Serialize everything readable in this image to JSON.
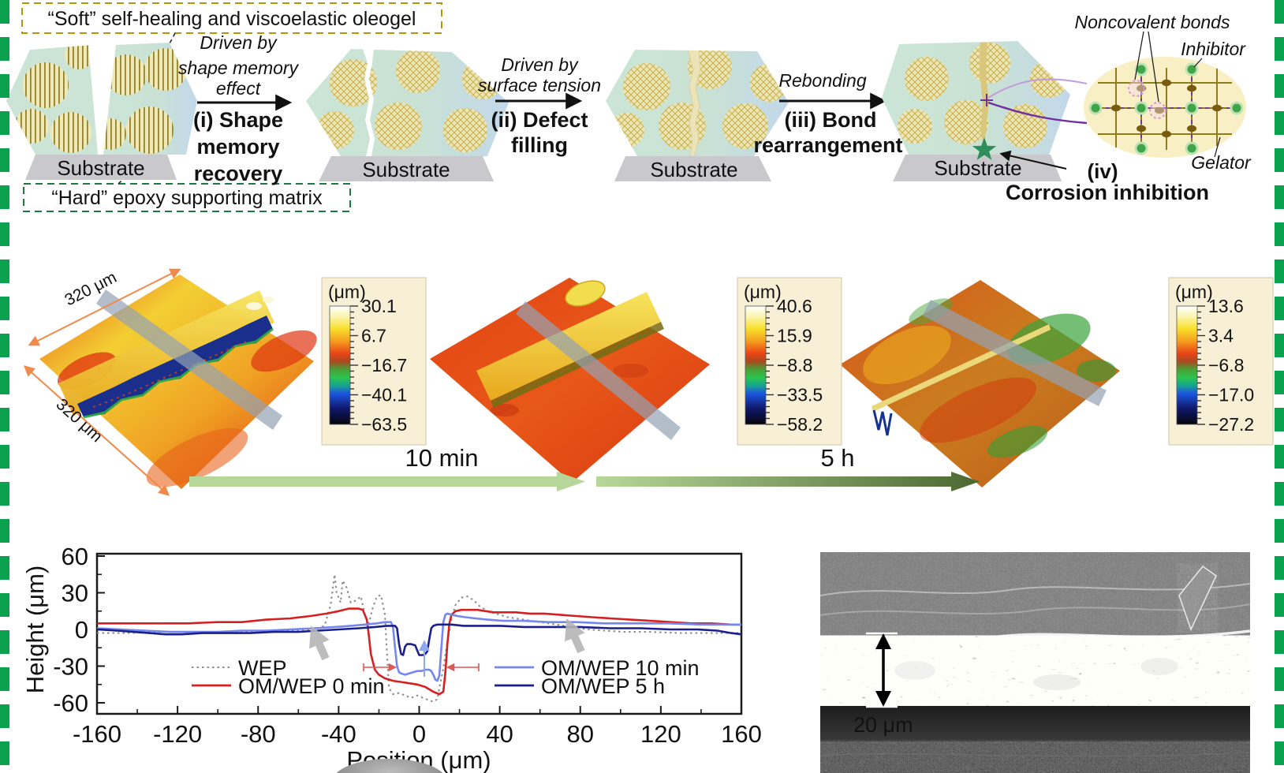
{
  "figure": {
    "border_color": "#0aa14f"
  },
  "schematic": {
    "soft_label": "“Soft” self-healing and viscoelastic oleogel",
    "hard_label": "“Hard” epoxy supporting matrix",
    "substrate_label": "Substrate",
    "soft_color": "#b6940d",
    "hard_color": "#1d7a3f",
    "steps": [
      {
        "driver_color": "#8a3a10",
        "name_color": "#7d3208",
        "driver_lines": [
          "Driven by",
          "shape memory",
          "effect"
        ],
        "name_lines": [
          "(i) Shape",
          "memory",
          "recovery"
        ]
      },
      {
        "driver_color": "#2c5fae",
        "name_color": "#1d3f9e",
        "driver_lines": [
          "Driven by",
          "surface tension"
        ],
        "name_lines": [
          "(ii) Defect",
          "filling"
        ]
      },
      {
        "driver_color": "#8b44cc",
        "name_color": "#6a2d9e",
        "driver_lines": [
          "Rebonding"
        ],
        "name_lines": [
          "(iii) Bond",
          "rearrangement"
        ]
      },
      {
        "name_color": "#1e7a3c",
        "iv_label": "(iv)",
        "name": "Corrosion inhibition"
      }
    ],
    "callouts": {
      "noncovalent": "Noncovalent bonds",
      "inhibitor": "Inhibitor",
      "gelator": "Gelator"
    }
  },
  "topography": {
    "size_label": "320 μm",
    "colorbars": [
      {
        "unit": "(μm)",
        "ticks": [
          "30.1",
          "6.7",
          "−16.7",
          "−40.1",
          "−63.5"
        ]
      },
      {
        "unit": "(μm)",
        "ticks": [
          "40.6",
          "15.9",
          "−8.8",
          "−33.5",
          "−58.2"
        ]
      },
      {
        "unit": "(μm)",
        "ticks": [
          "13.6",
          "3.4",
          "−6.8",
          "−17.0",
          "−27.2"
        ]
      }
    ],
    "timeline": [
      {
        "label": "10 min"
      },
      {
        "label": "5 h"
      }
    ]
  },
  "chart_data": {
    "type": "line",
    "title": "",
    "xlabel": "Position (μm)",
    "ylabel": "Height (μm)",
    "xlim": [
      -160,
      160
    ],
    "ylim": [
      -60,
      60
    ],
    "xticks": [
      -160,
      -120,
      -80,
      -40,
      0,
      40,
      80,
      120,
      160
    ],
    "yticks": [
      60,
      30,
      0,
      -30,
      -60
    ],
    "x_minor_step": 20,
    "y_minor_step": 15,
    "grid": false,
    "legend_position": "inside",
    "series": [
      {
        "name": "WEP",
        "color": "#8f8f8f",
        "dash": "dotted",
        "width": 2.1,
        "points": [
          [
            -160,
            -3
          ],
          [
            -145,
            -3
          ],
          [
            -130,
            -2
          ],
          [
            -115,
            -2
          ],
          [
            -100,
            -2
          ],
          [
            -85,
            -2
          ],
          [
            -70,
            -1
          ],
          [
            -60,
            -1
          ],
          [
            -52,
            0
          ],
          [
            -47,
            3
          ],
          [
            -44,
            20
          ],
          [
            -42,
            45
          ],
          [
            -41,
            30
          ],
          [
            -39,
            22
          ],
          [
            -38,
            40
          ],
          [
            -36,
            34
          ],
          [
            -34,
            22
          ],
          [
            -31,
            24
          ],
          [
            -29,
            27
          ],
          [
            -27,
            12
          ],
          [
            -25,
            5
          ],
          [
            -23,
            18
          ],
          [
            -21,
            27
          ],
          [
            -19,
            28
          ],
          [
            -17,
            12
          ],
          [
            -16,
            -20
          ],
          [
            -15,
            -48
          ],
          [
            -13,
            -53
          ],
          [
            -10,
            -52
          ],
          [
            -7,
            -54
          ],
          [
            -4,
            -56
          ],
          [
            -1,
            -54
          ],
          [
            2,
            -56
          ],
          [
            5,
            -58
          ],
          [
            7,
            -59
          ],
          [
            9,
            -57
          ],
          [
            10,
            -48
          ],
          [
            12,
            -32
          ],
          [
            14,
            -10
          ],
          [
            16,
            8
          ],
          [
            18,
            20
          ],
          [
            21,
            26
          ],
          [
            24,
            27
          ],
          [
            27,
            24
          ],
          [
            30,
            19
          ],
          [
            34,
            15
          ],
          [
            38,
            13
          ],
          [
            44,
            10
          ],
          [
            52,
            8
          ],
          [
            60,
            6
          ],
          [
            68,
            4
          ],
          [
            76,
            2
          ],
          [
            84,
            0
          ],
          [
            92,
            -1
          ],
          [
            102,
            -2
          ],
          [
            115,
            -2
          ],
          [
            130,
            -3
          ],
          [
            145,
            -3
          ],
          [
            160,
            -3
          ]
        ]
      },
      {
        "name": "OM/WEP 0 min",
        "color": "#d42020",
        "dash": "solid",
        "width": 2.6,
        "points": [
          [
            -160,
            5
          ],
          [
            -145,
            5
          ],
          [
            -130,
            5
          ],
          [
            -115,
            5
          ],
          [
            -100,
            6
          ],
          [
            -88,
            6
          ],
          [
            -76,
            8
          ],
          [
            -64,
            9
          ],
          [
            -54,
            11
          ],
          [
            -46,
            13
          ],
          [
            -40,
            15
          ],
          [
            -35,
            17
          ],
          [
            -30,
            17
          ],
          [
            -28,
            16
          ],
          [
            -26,
            8
          ],
          [
            -25,
            -5
          ],
          [
            -24,
            -20
          ],
          [
            -22,
            -33
          ],
          [
            -20,
            -37
          ],
          [
            -17,
            -40
          ],
          [
            -13,
            -42
          ],
          [
            -9,
            -43
          ],
          [
            -5,
            -44
          ],
          [
            -1,
            -45
          ],
          [
            3,
            -47
          ],
          [
            7,
            -51
          ],
          [
            10,
            -53
          ],
          [
            12,
            -51
          ],
          [
            13,
            -35
          ],
          [
            14,
            -12
          ],
          [
            15,
            5
          ],
          [
            16,
            12
          ],
          [
            18,
            15
          ],
          [
            21,
            16
          ],
          [
            25,
            16
          ],
          [
            29,
            16
          ],
          [
            33,
            15
          ],
          [
            37,
            14
          ],
          [
            42,
            14
          ],
          [
            48,
            14
          ],
          [
            55,
            13
          ],
          [
            62,
            13
          ],
          [
            70,
            12
          ],
          [
            78,
            11
          ],
          [
            86,
            10
          ],
          [
            95,
            9
          ],
          [
            105,
            8
          ],
          [
            115,
            7
          ],
          [
            125,
            6
          ],
          [
            135,
            5
          ],
          [
            145,
            5
          ],
          [
            155,
            4
          ],
          [
            160,
            4
          ]
        ]
      },
      {
        "name": "OM/WEP 10 min",
        "color": "#7486ef",
        "dash": "solid",
        "width": 2.6,
        "points": [
          [
            -160,
            1
          ],
          [
            -148,
            0
          ],
          [
            -136,
            -1
          ],
          [
            -124,
            -2
          ],
          [
            -112,
            -2
          ],
          [
            -100,
            -2
          ],
          [
            -88,
            -1
          ],
          [
            -76,
            -1
          ],
          [
            -64,
            0
          ],
          [
            -52,
            1
          ],
          [
            -42,
            2
          ],
          [
            -34,
            3
          ],
          [
            -27,
            4
          ],
          [
            -21,
            5
          ],
          [
            -17,
            6
          ],
          [
            -14,
            6
          ],
          [
            -13,
            2
          ],
          [
            -12,
            -15
          ],
          [
            -11,
            -30
          ],
          [
            -10,
            -35
          ],
          [
            -9,
            -36
          ],
          [
            -7,
            -37
          ],
          [
            -5,
            -36
          ],
          [
            -3,
            -35
          ],
          [
            -1,
            -34
          ],
          [
            1,
            -34
          ],
          [
            3,
            -33
          ],
          [
            5,
            -33
          ],
          [
            6,
            -34
          ],
          [
            7,
            -37
          ],
          [
            8,
            -41
          ],
          [
            9,
            -42
          ],
          [
            10,
            -38
          ],
          [
            11,
            -15
          ],
          [
            12,
            6
          ],
          [
            13,
            12
          ],
          [
            14,
            13
          ],
          [
            16,
            12
          ],
          [
            19,
            11
          ],
          [
            23,
            10
          ],
          [
            28,
            9
          ],
          [
            34,
            8
          ],
          [
            42,
            7
          ],
          [
            52,
            7
          ],
          [
            64,
            6
          ],
          [
            78,
            6
          ],
          [
            92,
            5
          ],
          [
            108,
            5
          ],
          [
            124,
            5
          ],
          [
            140,
            4
          ],
          [
            160,
            4
          ]
        ]
      },
      {
        "name": "OM/WEP 5 h",
        "color": "#1a1f8c",
        "dash": "solid",
        "width": 2.6,
        "points": [
          [
            -160,
            0
          ],
          [
            -150,
            -1
          ],
          [
            -142,
            -2
          ],
          [
            -134,
            -3
          ],
          [
            -126,
            -4
          ],
          [
            -118,
            -4
          ],
          [
            -108,
            -3
          ],
          [
            -96,
            -3
          ],
          [
            -84,
            -3
          ],
          [
            -72,
            -2
          ],
          [
            -60,
            -2
          ],
          [
            -50,
            -1
          ],
          [
            -40,
            0
          ],
          [
            -30,
            1
          ],
          [
            -22,
            2
          ],
          [
            -16,
            3
          ],
          [
            -12,
            3
          ],
          [
            -11,
            1
          ],
          [
            -10,
            -12
          ],
          [
            -9,
            -20
          ],
          [
            -8,
            -21
          ],
          [
            -7,
            -14
          ],
          [
            -6,
            -12
          ],
          [
            -4,
            -12
          ],
          [
            -2,
            -13
          ],
          [
            -1,
            -17
          ],
          [
            0,
            -21
          ],
          [
            1,
            -21
          ],
          [
            2,
            -21
          ],
          [
            3,
            -20
          ],
          [
            4,
            -18
          ],
          [
            5,
            -8
          ],
          [
            6,
            1
          ],
          [
            7,
            3
          ],
          [
            9,
            4
          ],
          [
            12,
            4
          ],
          [
            16,
            4
          ],
          [
            22,
            3
          ],
          [
            30,
            3
          ],
          [
            40,
            3
          ],
          [
            52,
            2
          ],
          [
            66,
            2
          ],
          [
            80,
            2
          ],
          [
            95,
            1
          ],
          [
            110,
            1
          ],
          [
            125,
            0
          ],
          [
            138,
            0
          ],
          [
            148,
            -1
          ],
          [
            155,
            -3
          ],
          [
            160,
            -4
          ]
        ]
      }
    ]
  },
  "sem": {
    "scale_label": "20 μm"
  }
}
